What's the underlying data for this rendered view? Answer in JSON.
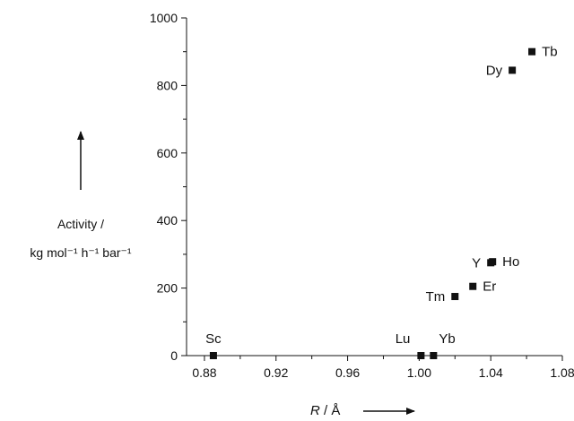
{
  "chart_data": {
    "type": "scatter",
    "xlabel_italic": "R",
    "xlabel_unit": " / Å",
    "ylabel_line1": "Activity /",
    "ylabel_line2": "kg mol⁻¹ h⁻¹ bar⁻¹",
    "xlim": [
      0.87,
      1.08
    ],
    "ylim": [
      0,
      1000
    ],
    "xticks": [
      0.88,
      0.92,
      0.96,
      1.0,
      1.04,
      1.08
    ],
    "xtick_labels": [
      "0.88",
      "0.92",
      "0.96",
      "1.00",
      "1.04",
      "1.08"
    ],
    "yticks": [
      0,
      200,
      400,
      600,
      800,
      1000
    ],
    "ytick_labels": [
      "0",
      "200",
      "400",
      "600",
      "800",
      "1000"
    ],
    "marker_color": "#111111",
    "points": [
      {
        "label": "Sc",
        "x": 0.885,
        "y": 0,
        "label_pos": "above"
      },
      {
        "label": "Lu",
        "x": 1.001,
        "y": 0,
        "label_pos": "above-left"
      },
      {
        "label": "Yb",
        "x": 1.008,
        "y": 0,
        "label_pos": "above-right"
      },
      {
        "label": "Tm",
        "x": 1.02,
        "y": 175,
        "label_pos": "left"
      },
      {
        "label": "Er",
        "x": 1.03,
        "y": 205,
        "label_pos": "right"
      },
      {
        "label": "Y",
        "x": 1.04,
        "y": 275,
        "label_pos": "left"
      },
      {
        "label": "Ho",
        "x": 1.041,
        "y": 278,
        "label_pos": "right"
      },
      {
        "label": "Dy",
        "x": 1.052,
        "y": 845,
        "label_pos": "left"
      },
      {
        "label": "Tb",
        "x": 1.063,
        "y": 900,
        "label_pos": "right"
      }
    ]
  }
}
